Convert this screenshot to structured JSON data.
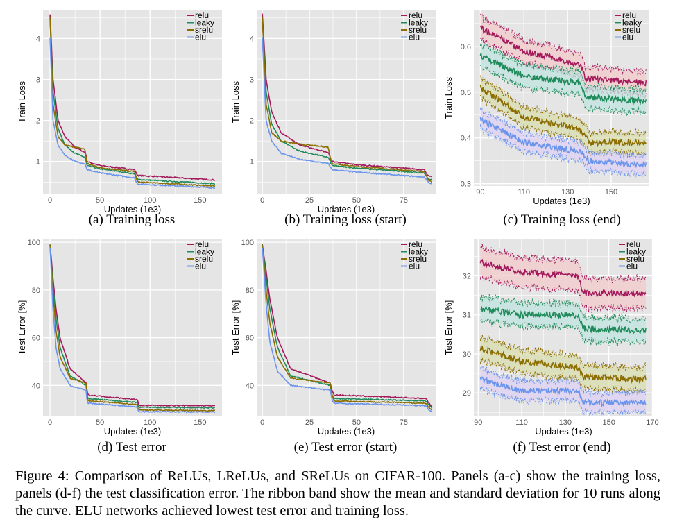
{
  "caption": "Figure 4: Comparison of ReLUs, LReLUs, and SReLUs on CIFAR-100. Panels (a-c) show the training loss, panels (d-f) the test classification error. The ribbon band show the mean and standard deviation for 10 runs along the curve. ELU networks achieved lowest test error and training loss.",
  "colors": {
    "relu": "#a3195b",
    "leaky": "#1f8a5a",
    "srelu": "#8b6d00",
    "elu": "#6b94ec",
    "panel_bg": "#e5e5e5"
  },
  "ribbon_colors": {
    "relu": "#f2c9c9",
    "leaky": "#bfe3df",
    "srelu": "#d8dcae",
    "elu": "#ddd0f2"
  },
  "chart_data": [
    {
      "id": "a",
      "type": "line",
      "subcaption": "(a)  Training loss",
      "xlabel": "Updates (1e3)",
      "ylabel": "Train Loss",
      "xlim": [
        -7,
        172
      ],
      "ylim": [
        0.2,
        4.7
      ],
      "xticks": [
        0,
        50,
        100,
        150
      ],
      "yticks": [
        1,
        2,
        3,
        4
      ],
      "ribbon": false,
      "series": [
        {
          "name": "relu",
          "x": [
            0,
            3,
            8,
            15,
            25,
            35,
            36,
            37,
            50,
            85,
            86,
            88,
            165
          ],
          "y": [
            4.6,
            3.0,
            2.0,
            1.6,
            1.35,
            1.22,
            1.15,
            1.0,
            0.9,
            0.8,
            0.72,
            0.66,
            0.55
          ]
        },
        {
          "name": "leaky",
          "x": [
            0,
            3,
            8,
            15,
            25,
            35,
            36,
            37,
            50,
            85,
            86,
            88,
            165
          ],
          "y": [
            4.5,
            2.7,
            1.8,
            1.4,
            1.2,
            1.1,
            1.0,
            0.9,
            0.82,
            0.7,
            0.62,
            0.56,
            0.46
          ]
        },
        {
          "name": "srelu",
          "x": [
            0,
            3,
            8,
            15,
            25,
            35,
            36,
            37,
            50,
            85,
            86,
            88,
            165
          ],
          "y": [
            4.5,
            2.4,
            1.6,
            1.4,
            1.35,
            1.3,
            1.1,
            0.95,
            0.85,
            0.75,
            0.6,
            0.5,
            0.4
          ]
        },
        {
          "name": "elu",
          "x": [
            0,
            3,
            8,
            15,
            25,
            35,
            36,
            37,
            50,
            85,
            86,
            88,
            165
          ],
          "y": [
            4.0,
            2.0,
            1.4,
            1.15,
            1.0,
            0.95,
            0.87,
            0.8,
            0.72,
            0.6,
            0.5,
            0.45,
            0.36
          ]
        }
      ]
    },
    {
      "id": "b",
      "type": "line",
      "subcaption": "(b)  Training loss (start)",
      "xlabel": "Updates (1e3)",
      "ylabel": "Train Loss",
      "xlim": [
        -3,
        92
      ],
      "ylim": [
        0.2,
        4.7
      ],
      "xticks": [
        0,
        25,
        50,
        75
      ],
      "yticks": [
        1,
        2,
        3,
        4
      ],
      "ribbon": false,
      "series": [
        {
          "name": "relu",
          "x": [
            0,
            2,
            5,
            10,
            20,
            35,
            36,
            37,
            50,
            86,
            88,
            90
          ],
          "y": [
            4.6,
            3.0,
            2.2,
            1.7,
            1.4,
            1.22,
            1.1,
            1.0,
            0.92,
            0.8,
            0.65,
            0.62
          ]
        },
        {
          "name": "leaky",
          "x": [
            0,
            2,
            5,
            10,
            20,
            35,
            36,
            37,
            50,
            86,
            88,
            90
          ],
          "y": [
            4.5,
            2.7,
            1.9,
            1.5,
            1.25,
            1.1,
            1.0,
            0.9,
            0.84,
            0.72,
            0.58,
            0.55
          ]
        },
        {
          "name": "srelu",
          "x": [
            0,
            2,
            5,
            10,
            20,
            35,
            36,
            37,
            50,
            86,
            88,
            90
          ],
          "y": [
            4.5,
            2.4,
            1.7,
            1.5,
            1.42,
            1.35,
            1.1,
            0.95,
            0.88,
            0.75,
            0.55,
            0.5
          ]
        },
        {
          "name": "elu",
          "x": [
            0,
            2,
            5,
            10,
            20,
            35,
            36,
            37,
            50,
            86,
            88,
            90
          ],
          "y": [
            4.0,
            2.0,
            1.5,
            1.2,
            1.05,
            0.95,
            0.87,
            0.8,
            0.74,
            0.62,
            0.5,
            0.45
          ]
        }
      ]
    },
    {
      "id": "c",
      "type": "line",
      "subcaption": "(c)  Training loss (end)",
      "xlabel": "Updates (1e3)",
      "ylabel": "Train Loss",
      "xlim": [
        87,
        167.5
      ],
      "ylim": [
        0.295,
        0.68
      ],
      "xticks": [
        90,
        110,
        130,
        150
      ],
      "yticks": [
        0.3,
        0.4,
        0.5,
        0.6
      ],
      "ribbon": true,
      "series": [
        {
          "name": "relu",
          "x": [
            90,
            110,
            136,
            138,
            166
          ],
          "y": [
            0.64,
            0.59,
            0.56,
            0.53,
            0.52
          ],
          "sd": 0.025
        },
        {
          "name": "leaky",
          "x": [
            90,
            110,
            136,
            138,
            166
          ],
          "y": [
            0.58,
            0.535,
            0.52,
            0.49,
            0.48
          ],
          "sd": 0.025
        },
        {
          "name": "srelu",
          "x": [
            90,
            110,
            135,
            140,
            166
          ],
          "y": [
            0.51,
            0.445,
            0.42,
            0.39,
            0.39
          ],
          "sd": 0.022
        },
        {
          "name": "elu",
          "x": [
            90,
            110,
            136,
            140,
            166
          ],
          "y": [
            0.44,
            0.39,
            0.37,
            0.35,
            0.34
          ],
          "sd": 0.02
        }
      ]
    },
    {
      "id": "d",
      "type": "line",
      "subcaption": "(d)  Test error",
      "xlabel": "Updates (1e3)",
      "ylabel": "Test Error [%]",
      "xlim": [
        -7,
        172
      ],
      "ylim": [
        27,
        101.5
      ],
      "xticks": [
        0,
        50,
        100,
        150
      ],
      "yticks": [
        40,
        60,
        80,
        100
      ],
      "ribbon": false,
      "series": [
        {
          "name": "relu",
          "x": [
            0,
            3,
            6,
            10,
            20,
            36,
            37,
            38,
            87,
            88,
            89,
            165
          ],
          "y": [
            99,
            85,
            72,
            60,
            47,
            41,
            38,
            36,
            34,
            33,
            31.6,
            31.5
          ]
        },
        {
          "name": "leaky",
          "x": [
            0,
            3,
            6,
            10,
            20,
            36,
            37,
            38,
            87,
            88,
            89,
            165
          ],
          "y": [
            99,
            82,
            68,
            56,
            44,
            40,
            36,
            34.5,
            32.8,
            31.5,
            30.8,
            30.6
          ]
        },
        {
          "name": "srelu",
          "x": [
            0,
            3,
            6,
            10,
            20,
            36,
            37,
            38,
            87,
            88,
            89,
            165
          ],
          "y": [
            99,
            78,
            63,
            52,
            43,
            41,
            36,
            33.5,
            32,
            30.5,
            29.7,
            29.4
          ]
        },
        {
          "name": "elu",
          "x": [
            0,
            3,
            6,
            10,
            20,
            36,
            37,
            38,
            87,
            88,
            89,
            165
          ],
          "y": [
            98,
            72,
            56,
            47,
            40,
            38,
            34,
            32.5,
            31,
            29.8,
            29,
            28.8
          ]
        }
      ]
    },
    {
      "id": "e",
      "type": "line",
      "subcaption": "(e)  Test error (start)",
      "xlabel": "Updates (1e3)",
      "ylabel": "Test Error [%]",
      "xlim": [
        -3,
        92
      ],
      "ylim": [
        27,
        101.5
      ],
      "xticks": [
        0,
        25,
        50,
        75
      ],
      "yticks": [
        40,
        60,
        80,
        100
      ],
      "ribbon": false,
      "series": [
        {
          "name": "relu",
          "x": [
            0,
            2,
            4,
            8,
            15,
            36,
            37,
            38,
            87,
            88,
            90
          ],
          "y": [
            99,
            88,
            76,
            60,
            47,
            41,
            38,
            36,
            34.5,
            33,
            31
          ]
        },
        {
          "name": "leaky",
          "x": [
            0,
            2,
            4,
            8,
            15,
            36,
            37,
            38,
            87,
            88,
            90
          ],
          "y": [
            99,
            85,
            72,
            56,
            44,
            40,
            36,
            34.5,
            33.5,
            32,
            30.5
          ]
        },
        {
          "name": "srelu",
          "x": [
            0,
            2,
            4,
            8,
            15,
            36,
            37,
            38,
            87,
            88,
            90
          ],
          "y": [
            99,
            80,
            66,
            52,
            43,
            41,
            36,
            33.5,
            32.5,
            31,
            29.5
          ]
        },
        {
          "name": "elu",
          "x": [
            0,
            2,
            4,
            8,
            15,
            36,
            37,
            38,
            87,
            88,
            90
          ],
          "y": [
            98,
            74,
            58,
            46,
            40,
            38,
            34,
            32.5,
            31.5,
            30,
            29
          ]
        }
      ]
    },
    {
      "id": "f",
      "type": "line",
      "subcaption": "(f)  Test error (end)",
      "xlabel": "Updates (1e3)",
      "ylabel": "Test Error [%]",
      "xlim": [
        88,
        170.5
      ],
      "ylim": [
        28.4,
        32.95
      ],
      "xticks": [
        90,
        110,
        130,
        150,
        170
      ],
      "yticks": [
        29,
        30,
        31,
        32
      ],
      "ribbon": true,
      "series": [
        {
          "name": "relu",
          "x": [
            91,
            110,
            136,
            138,
            167
          ],
          "y": [
            32.35,
            32.1,
            32.0,
            31.55,
            31.55
          ],
          "sd": 0.38
        },
        {
          "name": "leaky",
          "x": [
            91,
            110,
            136,
            138,
            167
          ],
          "y": [
            31.15,
            31.0,
            31.0,
            30.65,
            30.6
          ],
          "sd": 0.3
        },
        {
          "name": "srelu",
          "x": [
            91,
            110,
            136,
            138,
            167
          ],
          "y": [
            30.15,
            29.8,
            29.65,
            29.4,
            29.35
          ],
          "sd": 0.3
        },
        {
          "name": "elu",
          "x": [
            91,
            110,
            136,
            138,
            167
          ],
          "y": [
            29.35,
            29.05,
            29.05,
            28.75,
            28.75
          ],
          "sd": 0.25
        }
      ]
    }
  ]
}
